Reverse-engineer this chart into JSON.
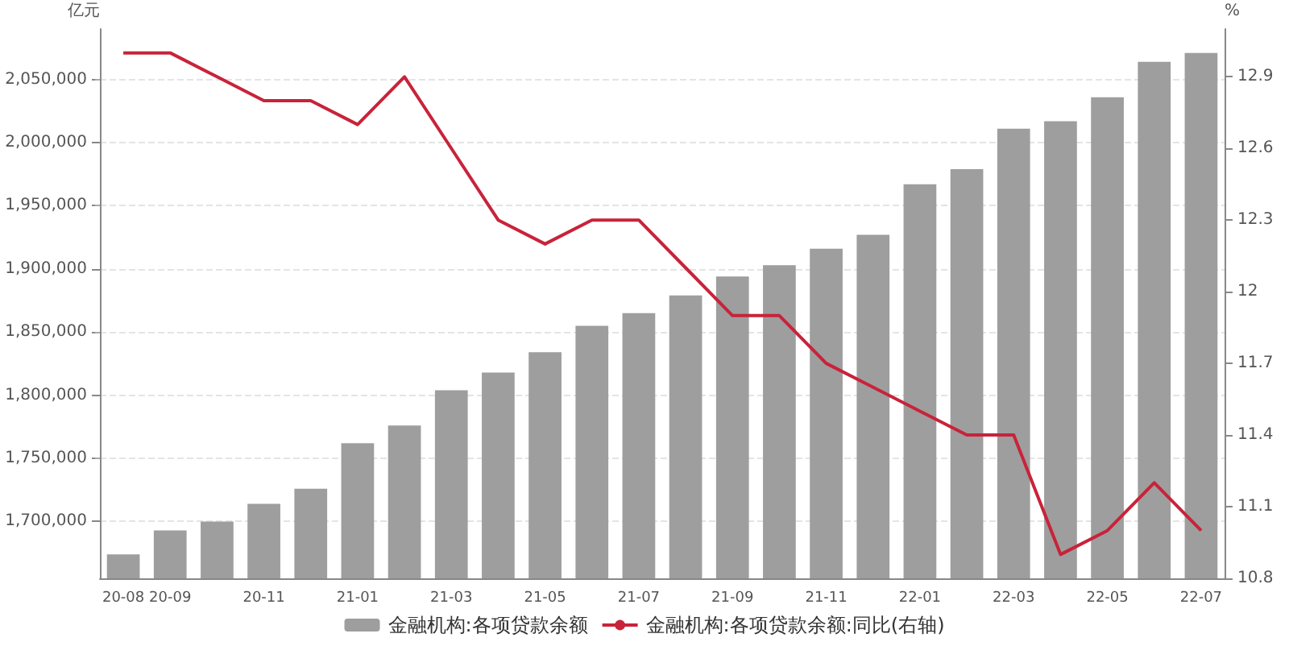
{
  "chart_data": {
    "type": "bar",
    "ylabel": "亿元",
    "y2label": "%",
    "categories": [
      "20-08",
      "20-09",
      null,
      "20-11",
      null,
      "21-01",
      null,
      "21-03",
      null,
      "21-05",
      null,
      "21-07",
      null,
      "21-09",
      null,
      "21-11",
      null,
      "22-01",
      null,
      "22-03",
      null,
      "22-05",
      null,
      "22-07"
    ],
    "series": [
      {
        "name": "金融机构:各项贷款余额",
        "color": "#9e9e9e",
        "values": [
          1674000,
          1693000,
          1700000,
          1714000,
          1726000,
          1762000,
          1776000,
          1804000,
          1818000,
          1834000,
          1855000,
          1865000,
          1879000,
          1894000,
          1903000,
          1916000,
          1927000,
          1967000,
          1979000,
          2011000,
          2017000,
          2036000,
          2064000,
          2071000
        ]
      },
      {
        "name": "金融机构:各项贷款余额:同比(右轴)",
        "type": "line",
        "axis": "y2",
        "color": "#c8233a",
        "values": [
          13.0,
          13.0,
          12.9,
          12.8,
          12.8,
          12.7,
          12.9,
          12.6,
          12.3,
          12.2,
          12.3,
          12.3,
          12.1,
          11.9,
          11.9,
          11.7,
          11.6,
          11.5,
          11.4,
          11.4,
          10.9,
          11.0,
          11.2,
          11.0
        ]
      }
    ],
    "ylim": [
      1655000,
      2090000
    ],
    "yticks": [
      {
        "value": 1700000,
        "label": "1,700,000"
      },
      {
        "value": 1750000,
        "label": "1,750,000"
      },
      {
        "value": 1800000,
        "label": "1,800,000"
      },
      {
        "value": 1850000,
        "label": "1,850,000"
      },
      {
        "value": 1900000,
        "label": "1,900,000"
      },
      {
        "value": 1950000,
        "label": "1,950,000"
      },
      {
        "value": 2000000,
        "label": "2,000,000"
      },
      {
        "value": 2050000,
        "label": "2,050,000"
      }
    ],
    "y2lim": [
      10.8,
      13.1
    ],
    "y2ticks": [
      10.8,
      11.1,
      11.4,
      11.7,
      12,
      12.3,
      12.6,
      12.9
    ],
    "grid": "y",
    "legend": "bottom"
  }
}
